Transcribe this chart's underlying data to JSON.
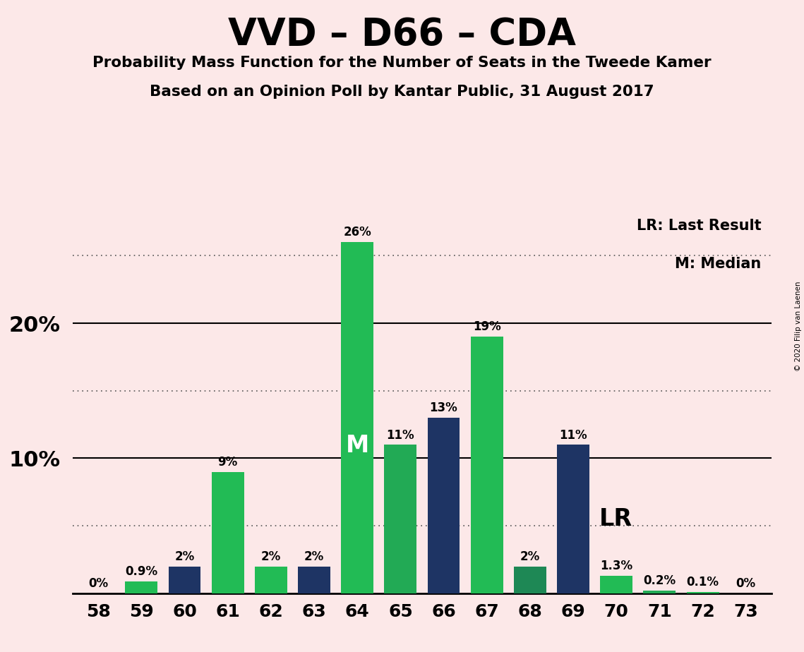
{
  "title": "VVD – D66 – CDA",
  "subtitle1": "Probability Mass Function for the Number of Seats in the Tweede Kamer",
  "subtitle2": "Based on an Opinion Poll by Kantar Public, 31 August 2017",
  "copyright": "© 2020 Filip van Laenen",
  "categories": [
    58,
    59,
    60,
    61,
    62,
    63,
    64,
    65,
    66,
    67,
    68,
    69,
    70,
    71,
    72,
    73
  ],
  "values": [
    0,
    0.9,
    2.0,
    9.0,
    2.0,
    2.0,
    26.0,
    11.0,
    13.0,
    19.0,
    2.0,
    11.0,
    1.3,
    0.2,
    0.1,
    0.0
  ],
  "labels": [
    "0%",
    "0.9%",
    "2%",
    "9%",
    "2%",
    "2%",
    "26%",
    "11%",
    "13%",
    "19%",
    "2%",
    "11%",
    "1.3%",
    "0.2%",
    "0.1%",
    "0%"
  ],
  "colors": [
    "#22bb55",
    "#22bb55",
    "#1e3464",
    "#22bb55",
    "#22bb55",
    "#1e3464",
    "#22bb55",
    "#22aa55",
    "#1e3464",
    "#22bb55",
    "#1e8855",
    "#1e3464",
    "#22bb55",
    "#22aa55",
    "#22bb55",
    "#22bb55"
  ],
  "median_seat": 64,
  "lr_seat": 69,
  "background_color": "#fce8e8",
  "green_color": "#22bb55",
  "teal_color": "#1e8855",
  "blue_color": "#1e3464",
  "solid_lines": [
    10,
    20
  ],
  "dotted_lines": [
    5,
    15,
    25
  ],
  "legend_lr": "LR: Last Result",
  "legend_m": "M: Median",
  "ylim_max": 28
}
